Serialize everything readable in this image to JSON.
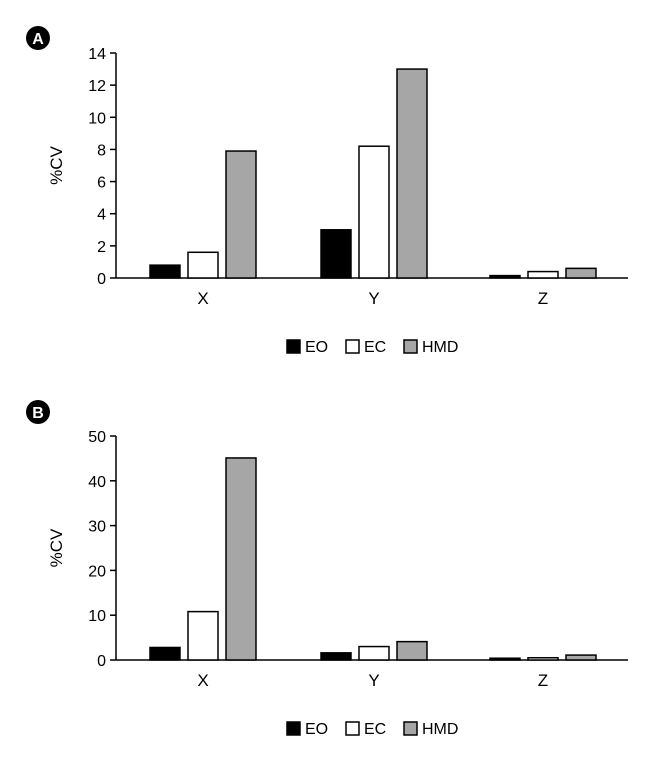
{
  "chart_data": [
    {
      "panel_label": "A",
      "type": "bar",
      "categories": [
        "X",
        "Y",
        "Z"
      ],
      "series": [
        {
          "name": "EO",
          "color": "#000000",
          "values": [
            0.8,
            3.0,
            0.15
          ]
        },
        {
          "name": "EC",
          "color": "#ffffff",
          "values": [
            1.6,
            8.2,
            0.4
          ]
        },
        {
          "name": "HMD",
          "color": "#a6a6a6",
          "values": [
            7.9,
            13.0,
            0.6
          ]
        }
      ],
      "ylabel": "%CV",
      "xlabel": "",
      "ylim": [
        0,
        14
      ],
      "yticks": [
        0,
        2,
        4,
        6,
        8,
        10,
        12,
        14
      ],
      "grid": false,
      "legend_placement": "bottom-center"
    },
    {
      "panel_label": "B",
      "type": "bar",
      "categories": [
        "X",
        "Y",
        "Z"
      ],
      "series": [
        {
          "name": "EO",
          "color": "#000000",
          "values": [
            2.8,
            1.6,
            0.4
          ]
        },
        {
          "name": "EC",
          "color": "#ffffff",
          "values": [
            10.8,
            3.0,
            0.5
          ]
        },
        {
          "name": "HMD",
          "color": "#a6a6a6",
          "values": [
            45.1,
            4.1,
            1.1
          ]
        }
      ],
      "ylabel": "%CV",
      "xlabel": "",
      "ylim": [
        0,
        50
      ],
      "yticks": [
        0,
        10,
        20,
        30,
        40,
        50
      ],
      "grid": false,
      "legend_placement": "bottom-center"
    }
  ]
}
